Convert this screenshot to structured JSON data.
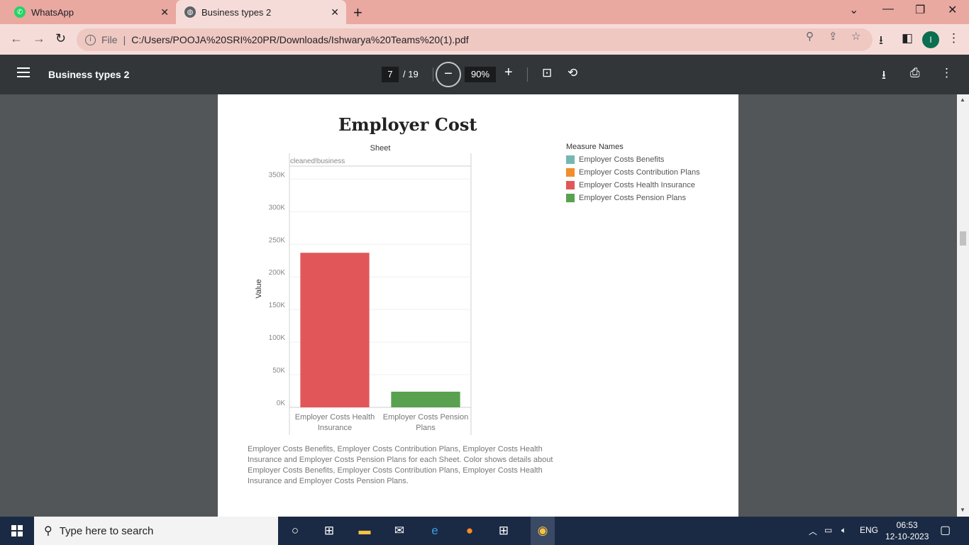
{
  "browser": {
    "tabs": [
      {
        "label": "WhatsApp",
        "active": false
      },
      {
        "label": "Business types 2",
        "active": true
      }
    ],
    "address": {
      "scheme_label": "File",
      "url": "C:/Users/POOJA%20SRI%20PR/Downloads/Ishwarya%20Teams%20(1).pdf"
    },
    "profile_initial": "I"
  },
  "pdf_viewer": {
    "title": "Business types 2",
    "current_page": "7",
    "total_pages": "/ 19",
    "zoom": "90%"
  },
  "document": {
    "caption": "Employer Costs Benefits, Employer Costs Contribution Plans, Employer Costs Health Insurance and Employer Costs Pension Plans for each Sheet.  Color shows details about Employer Costs Benefits, Employer Costs Contribution Plans, Employer Costs Health Insurance and Employer Costs Pension Plans."
  },
  "chart_data": {
    "type": "bar",
    "title": "Employer Cost",
    "column_header": "Sheet",
    "pane_label": "cleaned!business",
    "ylabel": "Value",
    "ylim": [
      0,
      370000
    ],
    "yticks": [
      {
        "value": 0,
        "label": "0K"
      },
      {
        "value": 50000,
        "label": "50K"
      },
      {
        "value": 100000,
        "label": "100K"
      },
      {
        "value": 150000,
        "label": "150K"
      },
      {
        "value": 200000,
        "label": "200K"
      },
      {
        "value": 250000,
        "label": "250K"
      },
      {
        "value": 300000,
        "label": "300K"
      },
      {
        "value": 350000,
        "label": "350K"
      }
    ],
    "grid": true,
    "categories": [
      [
        "Employer Costs Health",
        "Insurance"
      ],
      [
        "Employer Costs Pension",
        "Plans"
      ]
    ],
    "values": [
      237000,
      24000
    ],
    "bar_colors": [
      "#e15759",
      "#59a14f"
    ],
    "legend": {
      "title": "Measure Names",
      "position": "right",
      "items": [
        {
          "label": "Employer Costs Benefits",
          "color": "#76b7b2"
        },
        {
          "label": "Employer Costs Contribution Plans",
          "color": "#f28e2b"
        },
        {
          "label": "Employer Costs Health Insurance",
          "color": "#e15759"
        },
        {
          "label": "Employer Costs Pension Plans",
          "color": "#59a14f"
        }
      ]
    }
  },
  "taskbar": {
    "search_placeholder": "Type here to search",
    "language": "ENG",
    "time": "06:53",
    "date": "12-10-2023"
  }
}
